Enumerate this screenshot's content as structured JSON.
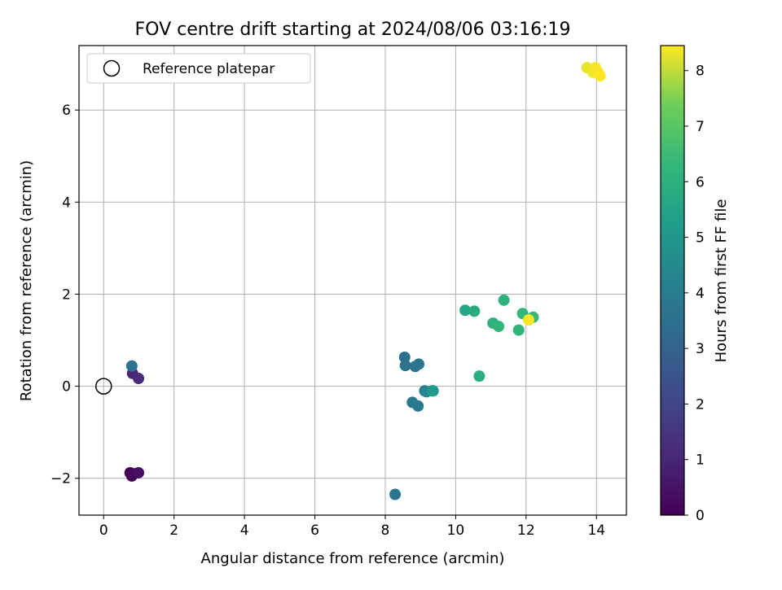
{
  "chart_data": {
    "type": "scatter",
    "title": "FOV centre drift starting at 2024/08/06 03:16:19",
    "xlabel": "Angular distance from reference (arcmin)",
    "ylabel": "Rotation from reference (arcmin)",
    "xlim": [
      -0.7,
      14.85
    ],
    "ylim": [
      -2.8,
      7.4
    ],
    "xticks": [
      0,
      2,
      4,
      6,
      8,
      10,
      12,
      14
    ],
    "yticks": [
      -2,
      0,
      2,
      4,
      6
    ],
    "xtick_labels": [
      "0",
      "2",
      "4",
      "6",
      "8",
      "10",
      "12",
      "14"
    ],
    "ytick_labels": [
      "−2",
      "0",
      "2",
      "4",
      "6"
    ],
    "grid": true,
    "legend": {
      "placement": "top-left",
      "entries": [
        "Reference platepar"
      ]
    },
    "reference_point": {
      "x": 0,
      "y": 0
    },
    "colorbar": {
      "label": "Hours from first FF file",
      "min": 0,
      "max": 8.45,
      "ticks": [
        0,
        1,
        2,
        3,
        4,
        5,
        6,
        7,
        8
      ],
      "tick_labels": [
        "0",
        "1",
        "2",
        "3",
        "4",
        "5",
        "6",
        "7",
        "8"
      ],
      "colormap": "viridis"
    },
    "points": [
      {
        "x": 0.75,
        "y": -1.88,
        "hours": 0.0
      },
      {
        "x": 0.8,
        "y": -1.95,
        "hours": 0.1
      },
      {
        "x": 0.85,
        "y": -1.9,
        "hours": 0.2
      },
      {
        "x": 0.99,
        "y": -1.88,
        "hours": 0.4
      },
      {
        "x": 0.82,
        "y": 0.28,
        "hours": 1.0
      },
      {
        "x": 0.99,
        "y": 0.17,
        "hours": 1.2
      },
      {
        "x": 0.8,
        "y": 0.44,
        "hours": 3.6
      },
      {
        "x": 8.28,
        "y": -2.35,
        "hours": 3.7
      },
      {
        "x": 8.55,
        "y": 0.63,
        "hours": 3.5
      },
      {
        "x": 8.57,
        "y": 0.45,
        "hours": 3.6
      },
      {
        "x": 8.85,
        "y": 0.43,
        "hours": 3.6
      },
      {
        "x": 8.95,
        "y": 0.48,
        "hours": 3.7
      },
      {
        "x": 8.77,
        "y": -0.35,
        "hours": 3.8
      },
      {
        "x": 8.93,
        "y": -0.43,
        "hours": 3.9
      },
      {
        "x": 9.12,
        "y": -0.1,
        "hours": 4.0
      },
      {
        "x": 9.17,
        "y": -0.12,
        "hours": 4.3
      },
      {
        "x": 9.33,
        "y": -0.1,
        "hours": 5.0
      },
      {
        "x": 9.36,
        "y": -0.1,
        "hours": 5.2
      },
      {
        "x": 10.27,
        "y": 1.65,
        "hours": 5.6
      },
      {
        "x": 10.53,
        "y": 1.63,
        "hours": 5.8
      },
      {
        "x": 10.67,
        "y": 0.22,
        "hours": 5.9
      },
      {
        "x": 11.06,
        "y": 1.37,
        "hours": 6.0
      },
      {
        "x": 11.22,
        "y": 1.3,
        "hours": 6.2
      },
      {
        "x": 11.37,
        "y": 1.87,
        "hours": 6.1
      },
      {
        "x": 11.79,
        "y": 1.22,
        "hours": 6.2
      },
      {
        "x": 11.9,
        "y": 1.58,
        "hours": 6.3
      },
      {
        "x": 12.2,
        "y": 1.5,
        "hours": 6.4
      },
      {
        "x": 12.07,
        "y": 1.44,
        "hours": 8.4
      },
      {
        "x": 13.73,
        "y": 6.92,
        "hours": 8.3
      },
      {
        "x": 13.9,
        "y": 6.82,
        "hours": 8.35
      },
      {
        "x": 13.97,
        "y": 6.92,
        "hours": 8.4
      },
      {
        "x": 14.05,
        "y": 6.82,
        "hours": 8.4
      },
      {
        "x": 14.1,
        "y": 6.74,
        "hours": 8.45
      }
    ]
  }
}
